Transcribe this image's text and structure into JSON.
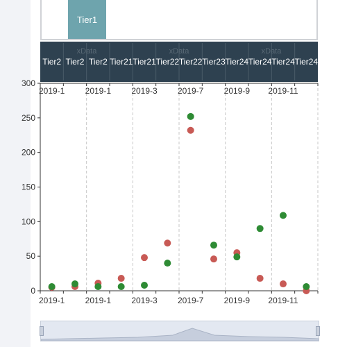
{
  "tier_tab_label": "Tier1",
  "header": {
    "tier_labels": [
      "Tier2",
      "Tier2",
      "Tier2",
      "Tier21",
      "Tier21",
      "Tier22",
      "Tier22",
      "Tier23",
      "Tier24",
      "Tier24",
      "Tier24",
      "Tier24"
    ],
    "watermark_labels": [
      "xData",
      "xData",
      "xData"
    ]
  },
  "colors": {
    "header_bg": "#2e4150",
    "series_a": "#c85a55",
    "series_b": "#2e8b34",
    "tier_tab": "#6ea4ad"
  },
  "chart_data": {
    "type": "scatter",
    "categories": [
      "2019-1",
      "2019-2",
      "2019-1",
      "2019-2",
      "2019-3",
      "2019-5",
      "2019-7",
      "2019-8",
      "2019-9",
      "2019-10",
      "2019-11",
      "2019-12"
    ],
    "top_tick_labels": [
      "2019-1",
      "2019-1",
      "2019-3",
      "2019-7",
      "2019-9",
      "2019-11"
    ],
    "bottom_tick_labels": [
      "2019-1",
      "2019-1",
      "2019-3",
      "2019-7",
      "2019-9",
      "2019-11"
    ],
    "ylim": [
      0,
      300
    ],
    "yticks": [
      0,
      50,
      100,
      150,
      200,
      250,
      300
    ],
    "series": [
      {
        "values": [
          5,
          6,
          11,
          18,
          48,
          69,
          232,
          46,
          55,
          18,
          10,
          0
        ]
      },
      {
        "values": [
          6,
          10,
          6,
          6,
          8,
          40,
          252,
          66,
          49,
          90,
          109,
          6
        ]
      }
    ],
    "grid": "vertical-dashed",
    "legend": "none"
  }
}
